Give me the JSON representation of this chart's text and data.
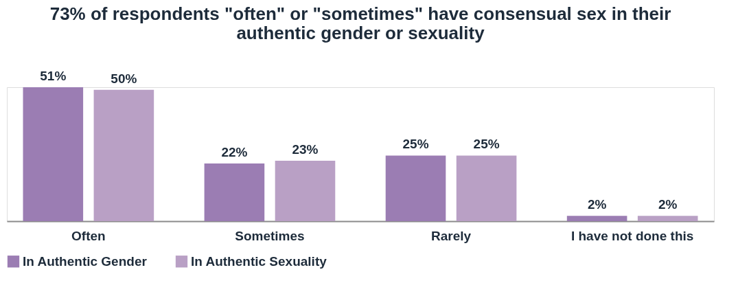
{
  "chart_data": {
    "type": "bar",
    "title": "73% of respondents \"often\" or \"sometimes\" have consensual sex in their authentic gender or sexuality",
    "categories": [
      "Often",
      "Sometimes",
      "Rarely",
      "I have not done this"
    ],
    "series": [
      {
        "name": "In Authentic Gender",
        "color": "#9b7db3",
        "values": [
          51,
          22,
          25,
          2
        ],
        "value_labels": [
          "51%",
          "22%",
          "25%",
          "2%"
        ]
      },
      {
        "name": "In Authentic Sexuality",
        "color": "#b9a0c5",
        "values": [
          50,
          23,
          25,
          2
        ],
        "value_labels": [
          "50%",
          "23%",
          "25%",
          "2%"
        ]
      }
    ],
    "legend": "bottom",
    "grid": false
  }
}
